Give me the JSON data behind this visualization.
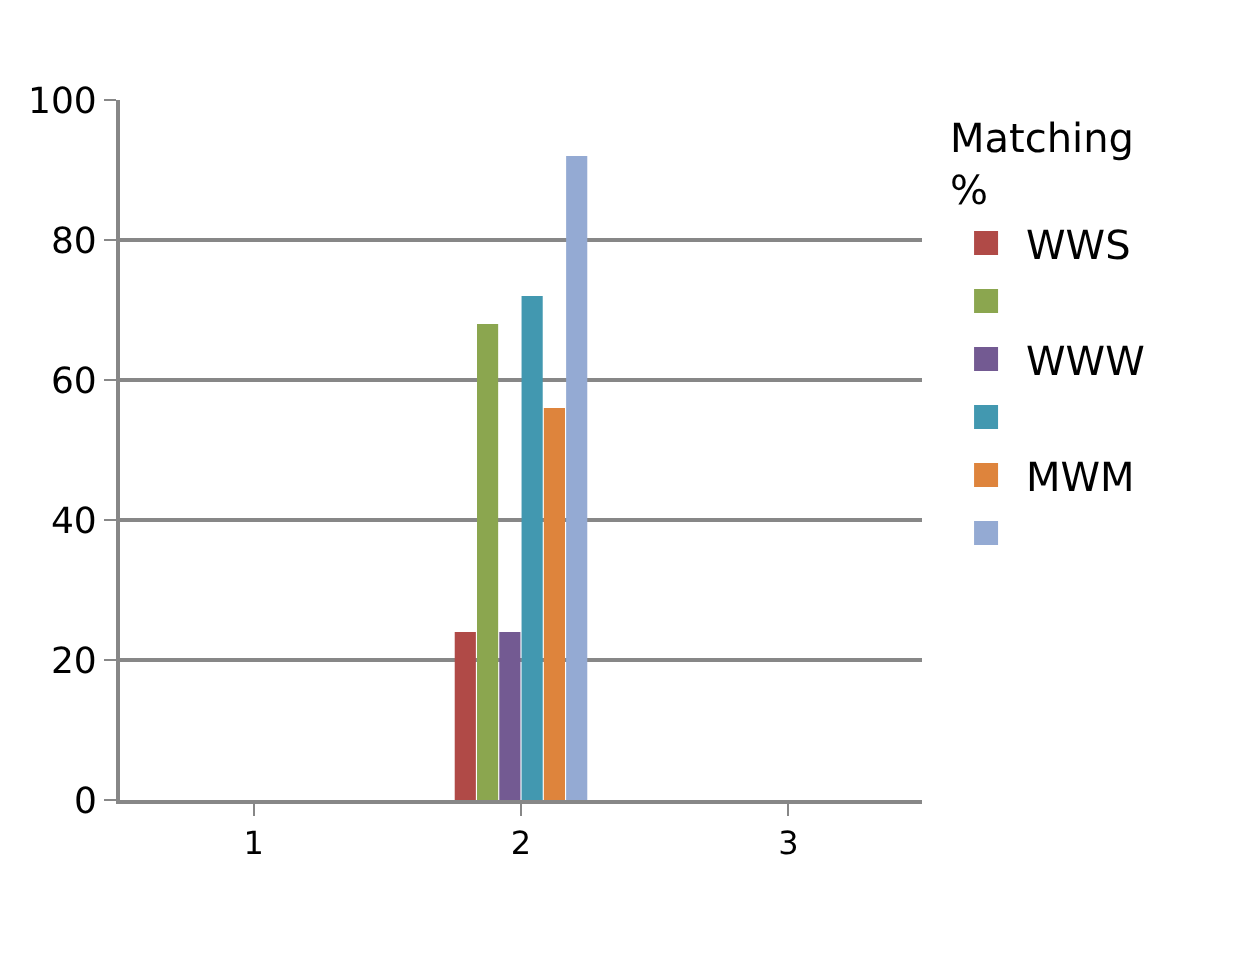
{
  "chart_data": {
    "type": "bar",
    "legend_title": "Matching %",
    "categories": [
      "1",
      "2",
      "3"
    ],
    "series": [
      {
        "name": "WWS",
        "color": "#b04a47",
        "values": [
          0,
          24,
          null
        ]
      },
      {
        "color": "#8ba64f",
        "values": [
          0,
          68,
          null
        ]
      },
      {
        "name": "WWW",
        "color": "#735a92",
        "values": [
          0,
          24,
          null
        ]
      },
      {
        "color": "#4298b0",
        "values": [
          0,
          72,
          null
        ]
      },
      {
        "name": "MWM",
        "color": "#de843c",
        "values": [
          0,
          56,
          null
        ]
      },
      {
        "color": "#94aad3",
        "values": [
          0,
          92,
          null
        ]
      }
    ],
    "ylim": [
      0,
      100
    ],
    "yticks": [
      0,
      20,
      40,
      60,
      80,
      100
    ],
    "grid": "y",
    "legend": "right"
  }
}
